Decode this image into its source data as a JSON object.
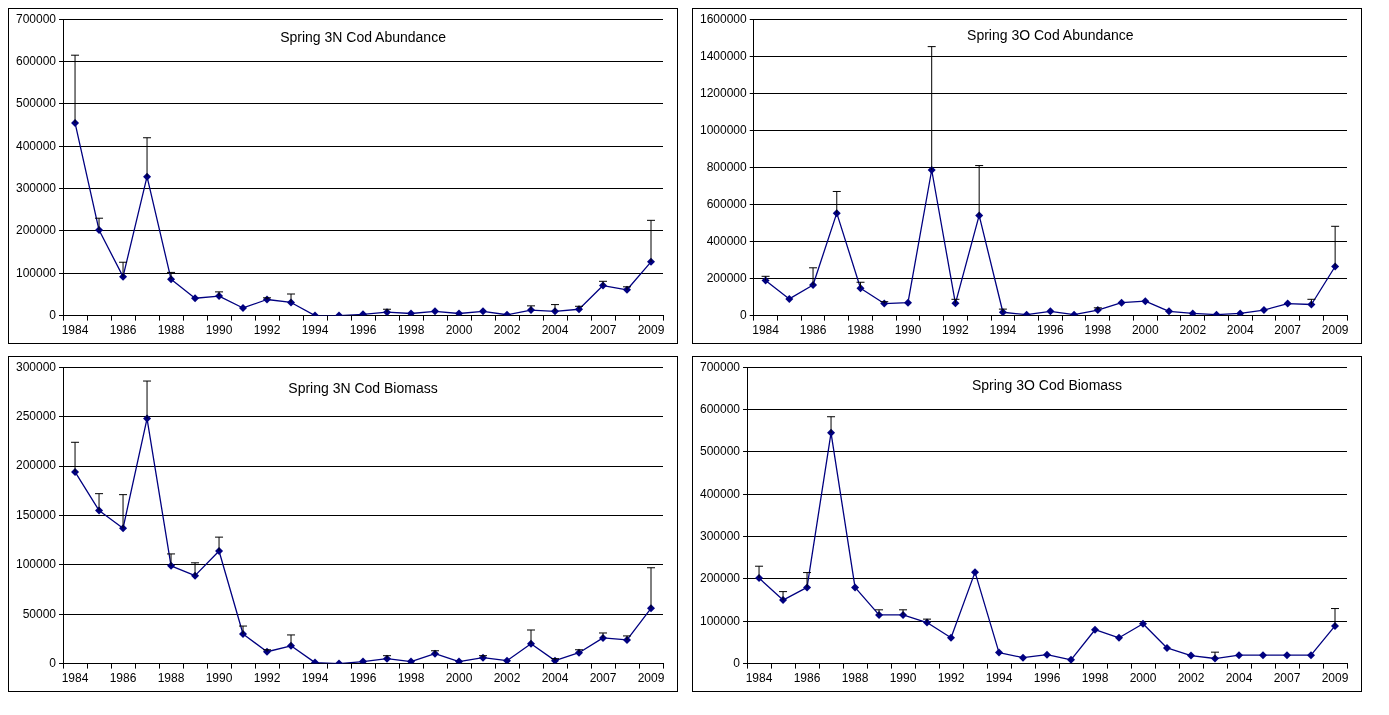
{
  "chart_data": [
    {
      "type": "line",
      "title": "Spring 3N Cod Abundance",
      "categories": [
        "1984",
        null,
        "1986",
        null,
        "1988",
        null,
        "1990",
        null,
        "1992",
        null,
        "1994",
        null,
        "1996",
        null,
        "1998",
        null,
        "2000",
        null,
        "2002",
        null,
        "2004",
        null,
        "2007",
        null,
        "2009"
      ],
      "series": [
        {
          "color": "#000080",
          "values": [
            455000,
            202000,
            92000,
            328000,
            86000,
            41000,
            46000,
            18000,
            38000,
            31000,
            0,
            0,
            3000,
            8000,
            5000,
            10000,
            5000,
            10000,
            2000,
            13000,
            10000,
            15000,
            71000,
            61000,
            127000
          ],
          "errors": [
            [
              455000,
              615000
            ],
            [
              202000,
              230000
            ],
            [
              92000,
              126000
            ],
            [
              328000,
              420000
            ],
            [
              86000,
              102000
            ],
            null,
            [
              46000,
              56000
            ],
            null,
            [
              38000,
              42000
            ],
            [
              31000,
              51000
            ],
            null,
            null,
            null,
            [
              8000,
              15000
            ],
            null,
            null,
            null,
            null,
            null,
            [
              13000,
              23000
            ],
            [
              10000,
              26000
            ],
            [
              15000,
              22000
            ],
            [
              71000,
              81000
            ],
            [
              61000,
              68000
            ],
            [
              127000,
              225000
            ]
          ]
        }
      ],
      "ylim": [
        0,
        700000
      ],
      "yticks": [
        0,
        100000,
        200000,
        300000,
        400000,
        500000,
        600000,
        700000
      ],
      "grid": "y",
      "legend": false,
      "marker": "diamond",
      "line_style": "solid"
    },
    {
      "type": "line",
      "title": "Spring 3O Cod Abundance",
      "categories": [
        "1984",
        null,
        "1986",
        null,
        "1988",
        null,
        "1990",
        null,
        "1992",
        null,
        "1994",
        null,
        "1996",
        null,
        "1998",
        null,
        "2000",
        null,
        "2002",
        null,
        "2004",
        null,
        "2007",
        null,
        "2009"
      ],
      "series": [
        {
          "color": "#000080",
          "values": [
            190000,
            90000,
            165000,
            553000,
            148000,
            65000,
            70000,
            786000,
            66000,
            541000,
            18000,
            5000,
            23000,
            5000,
            30000,
            70000,
            78000,
            23000,
            12000,
            5000,
            12000,
            30000,
            65000,
            60000,
            265000
          ],
          "errors": [
            [
              190000,
              212000
            ],
            null,
            [
              165000,
              258000
            ],
            [
              553000,
              670000
            ],
            [
              148000,
              180000
            ],
            [
              65000,
              75000
            ],
            null,
            [
              786000,
              1452000
            ],
            [
              66000,
              88000
            ],
            [
              541000,
              810000
            ],
            [
              18000,
              35000
            ],
            null,
            null,
            null,
            [
              30000,
              42000
            ],
            null,
            null,
            null,
            null,
            null,
            null,
            null,
            null,
            [
              60000,
              88000
            ],
            [
              265000,
              482000
            ]
          ]
        }
      ],
      "ylim": [
        0,
        1600000
      ],
      "yticks": [
        0,
        200000,
        400000,
        600000,
        800000,
        1000000,
        1200000,
        1400000,
        1600000
      ],
      "grid": "y",
      "legend": false,
      "marker": "diamond",
      "line_style": "solid"
    },
    {
      "type": "line",
      "title": "Spring 3N Cod Biomass",
      "categories": [
        "1984",
        null,
        "1986",
        null,
        "1988",
        null,
        "1990",
        null,
        "1992",
        null,
        "1994",
        null,
        "1996",
        null,
        "1998",
        null,
        "2000",
        null,
        "2002",
        null,
        "2004",
        null,
        "2007",
        null,
        "2009"
      ],
      "series": [
        {
          "color": "#000080",
          "values": [
            194000,
            155000,
            137000,
            248000,
            99000,
            89000,
            114000,
            30000,
            12000,
            18000,
            1000,
            0,
            2000,
            5000,
            2000,
            10000,
            2000,
            6000,
            3000,
            20000,
            3000,
            11000,
            26000,
            24000,
            56000
          ],
          "errors": [
            [
              194000,
              224000
            ],
            [
              155000,
              172000
            ],
            [
              137000,
              171000
            ],
            [
              248000,
              286000
            ],
            [
              99000,
              111000
            ],
            [
              89000,
              102000
            ],
            [
              114000,
              128000
            ],
            [
              30000,
              38000
            ],
            [
              12000,
              14000
            ],
            [
              18000,
              29000
            ],
            null,
            null,
            null,
            [
              5000,
              8000
            ],
            null,
            [
              10000,
              13000
            ],
            null,
            [
              6000,
              8000
            ],
            null,
            [
              20000,
              34000
            ],
            [
              3000,
              5000
            ],
            [
              11000,
              14000
            ],
            [
              26000,
              31000
            ],
            [
              24000,
              28000
            ],
            [
              56000,
              97000
            ]
          ]
        }
      ],
      "ylim": [
        0,
        300000
      ],
      "yticks": [
        0,
        50000,
        100000,
        150000,
        200000,
        250000,
        300000
      ],
      "grid": "y",
      "legend": false,
      "marker": "diamond",
      "line_style": "solid"
    },
    {
      "type": "line",
      "title": "Spring 3O Cod Biomass",
      "categories": [
        "1984",
        null,
        "1986",
        null,
        "1988",
        null,
        "1990",
        null,
        "1992",
        null,
        "1994",
        null,
        "1996",
        null,
        "1998",
        null,
        "2000",
        null,
        "2002",
        null,
        "2004",
        null,
        "2007",
        null,
        "2009"
      ],
      "series": [
        {
          "color": "#000080",
          "values": [
            202000,
            150000,
            180000,
            545000,
            180000,
            115000,
            115000,
            97000,
            61000,
            216000,
            26000,
            14000,
            21000,
            9000,
            80000,
            61000,
            94000,
            37000,
            19000,
            12000,
            20000,
            20000,
            20000,
            20000,
            89000
          ],
          "errors": [
            [
              202000,
              230000
            ],
            [
              150000,
              170000
            ],
            [
              180000,
              215000
            ],
            [
              545000,
              583000
            ],
            null,
            [
              115000,
              127000
            ],
            [
              115000,
              127000
            ],
            [
              97000,
              105000
            ],
            null,
            null,
            null,
            null,
            null,
            null,
            null,
            null,
            null,
            null,
            null,
            [
              12000,
              27000
            ],
            null,
            null,
            null,
            null,
            [
              89000,
              130000
            ]
          ]
        }
      ],
      "ylim": [
        0,
        700000
      ],
      "yticks": [
        0,
        100000,
        200000,
        300000,
        400000,
        500000,
        600000,
        700000
      ],
      "grid": "y",
      "legend": false,
      "marker": "diamond",
      "line_style": "solid"
    }
  ]
}
